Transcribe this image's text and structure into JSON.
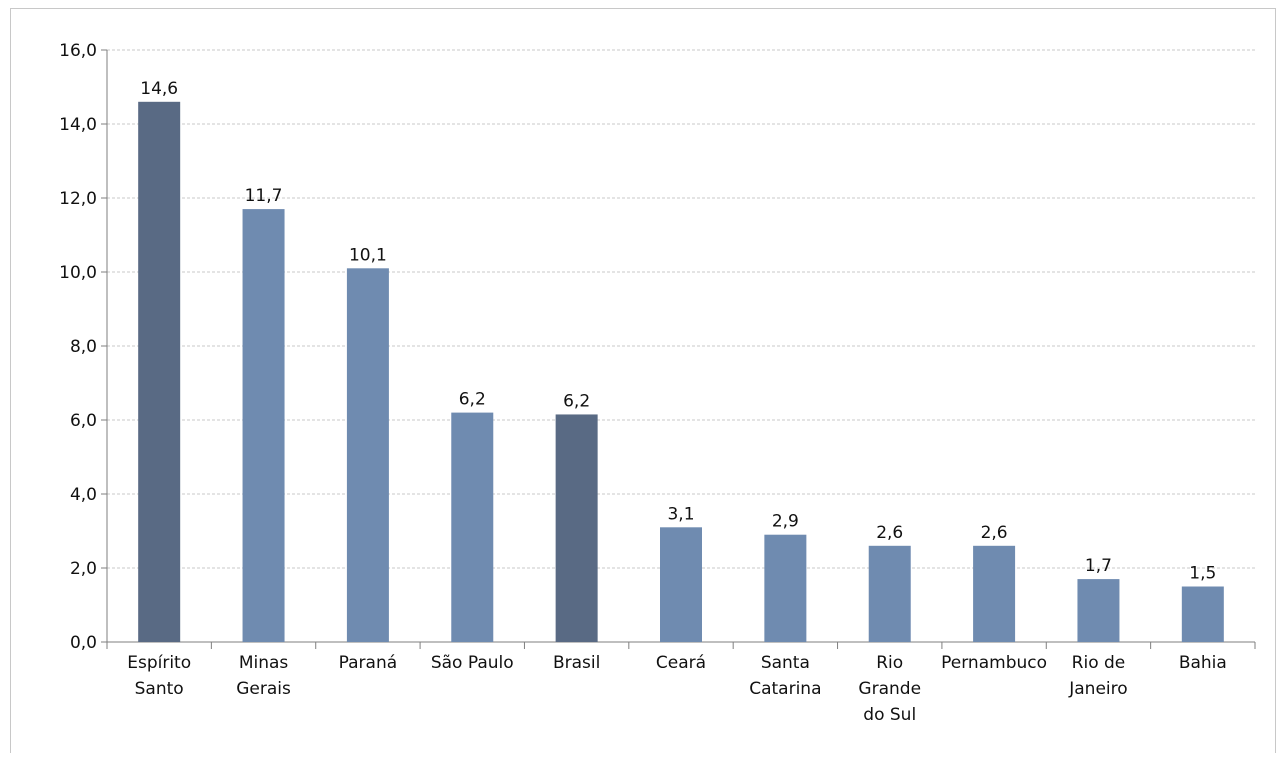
{
  "chart_data": {
    "type": "bar",
    "categories": [
      [
        "Espírito",
        "Santo"
      ],
      [
        "Minas",
        "Gerais"
      ],
      [
        "Paraná"
      ],
      [
        "São Paulo"
      ],
      [
        "Brasil"
      ],
      [
        "Ceará"
      ],
      [
        "Santa",
        "Catarina"
      ],
      [
        "Rio",
        "Grande",
        "do Sul"
      ],
      [
        "Pernambuco"
      ],
      [
        "Rio de",
        "Janeiro"
      ],
      [
        "Bahia"
      ]
    ],
    "values": [
      14.6,
      11.7,
      10.1,
      6.2,
      6.15,
      3.1,
      2.9,
      2.6,
      2.6,
      1.7,
      1.5
    ],
    "data_labels": [
      "14,6",
      "11,7",
      "10,1",
      "6,2",
      "6,2",
      "3,1",
      "2,9",
      "2,6",
      "2,6",
      "1,7",
      "1,5"
    ],
    "highlight": [
      true,
      false,
      false,
      false,
      true,
      false,
      false,
      false,
      false,
      false,
      false
    ],
    "colors": {
      "normal": "#6f8bb0",
      "highlight": "#596a84",
      "grid": "#c8c8c8",
      "axis": "#7f7f7f"
    },
    "yticks": [
      "0,0",
      "2,0",
      "4,0",
      "6,0",
      "8,0",
      "10,0",
      "12,0",
      "14,0",
      "16,0"
    ],
    "ylim": [
      0,
      16
    ],
    "grid": true,
    "legend": "none",
    "title": "",
    "xlabel": "",
    "ylabel": ""
  }
}
